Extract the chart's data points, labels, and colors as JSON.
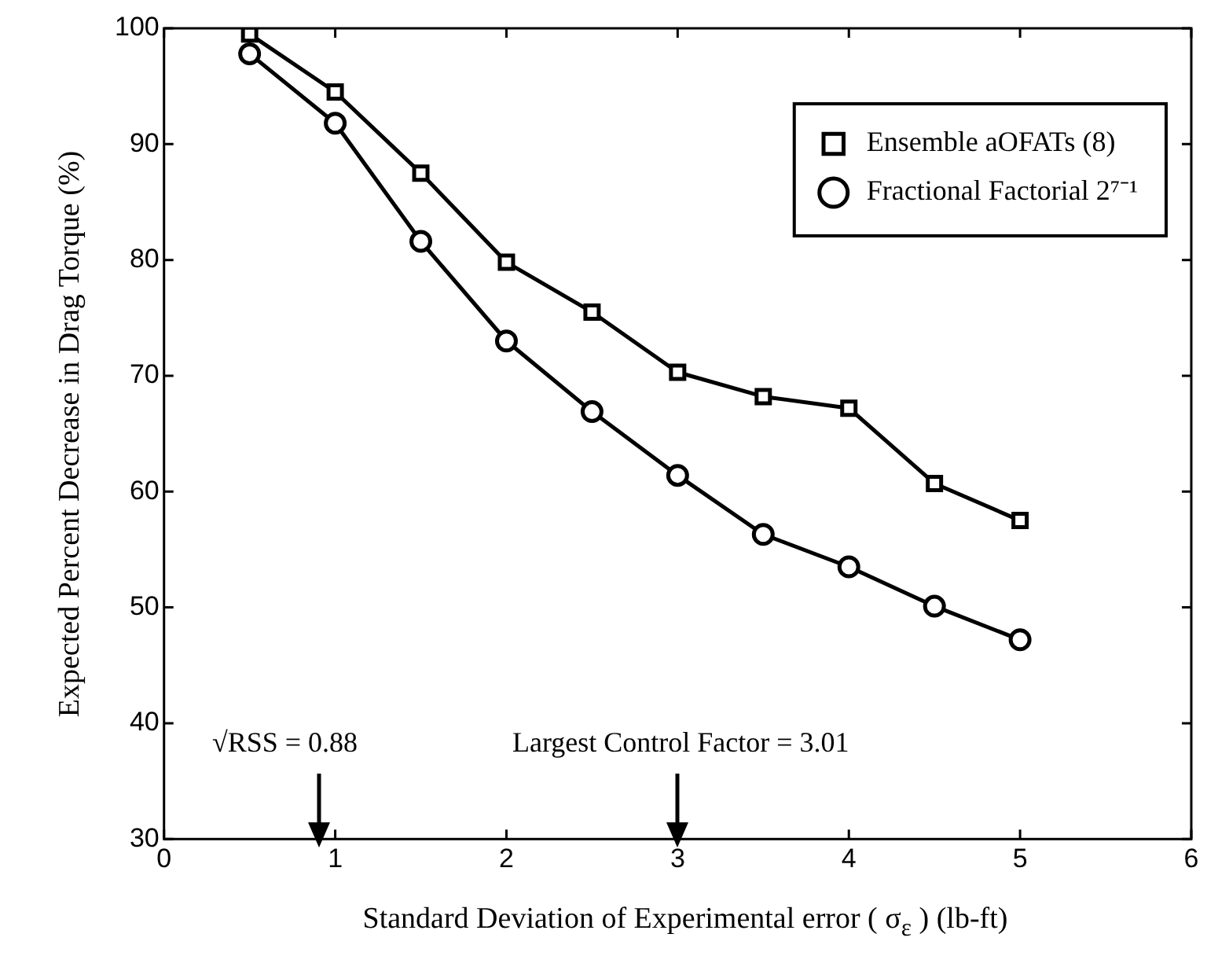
{
  "chart_data": {
    "type": "line",
    "xlabel": "Standard Deviation of Experimental error ( σ$_{ε}$ ) (lb-ft)",
    "ylabel": "Expected Percent Decrease in Drag Torque (%)",
    "x": [
      0.5,
      1,
      1.5,
      2,
      2.5,
      3,
      3.5,
      4,
      4.5,
      5
    ],
    "series": [
      {
        "name": "Ensemble aOFATs (8)",
        "color": "#000000",
        "marker": "square",
        "values": [
          99.5,
          94.5,
          87.5,
          79.8,
          75.5,
          70.3,
          68.2,
          67.2,
          60.7,
          57.5
        ]
      },
      {
        "name": "Fractional Factorial 2⁷⁻¹",
        "color": "#000000",
        "marker": "circle",
        "values": [
          97.8,
          91.8,
          81.6,
          73.0,
          66.9,
          61.4,
          56.3,
          53.5,
          50.1,
          47.2
        ]
      }
    ],
    "xlim": [
      0,
      6
    ],
    "xticks": [
      0,
      1,
      2,
      3,
      4,
      5,
      6
    ],
    "ylim": [
      30,
      100
    ],
    "yticks": [
      30,
      40,
      50,
      60,
      70,
      80,
      90,
      100
    ],
    "annotations": [
      "√RSS = 0.88",
      "Largest Control Factor = 3.01"
    ],
    "legend": "top right",
    "line_style": "solid"
  }
}
